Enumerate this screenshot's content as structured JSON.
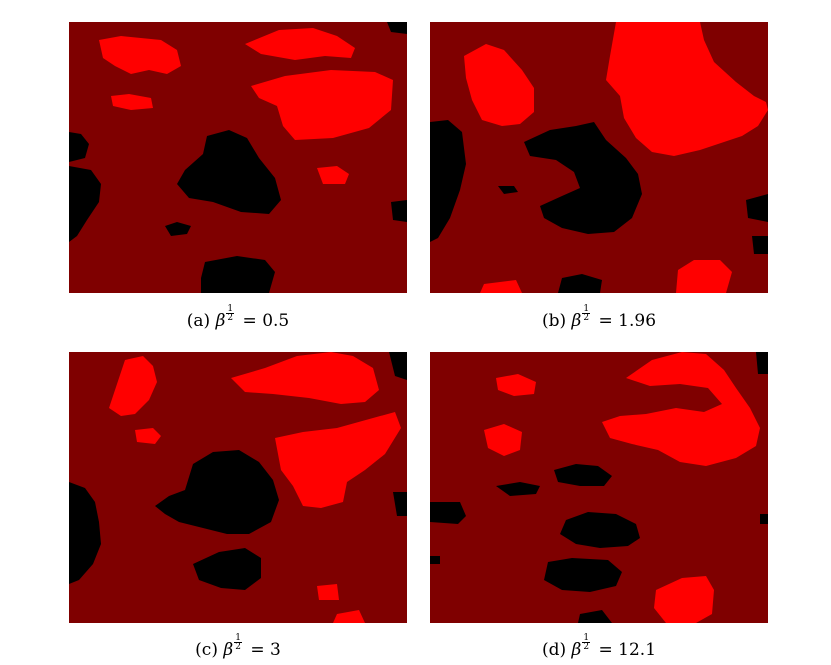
{
  "figure": {
    "colors": {
      "background": "#7f0000",
      "high": "#ff0000",
      "low": "#000000"
    },
    "panels": [
      {
        "label": "(a)",
        "symbol": "β",
        "exp_num": "1",
        "exp_den": "2",
        "relation": "=",
        "value": "0.5"
      },
      {
        "label": "(b)",
        "symbol": "β",
        "exp_num": "1",
        "exp_den": "2",
        "relation": "=",
        "value": "1.96"
      },
      {
        "label": "(c)",
        "symbol": "β",
        "exp_num": "1",
        "exp_den": "2",
        "relation": "=",
        "value": "3"
      },
      {
        "label": "(d)",
        "symbol": "β",
        "exp_num": "1",
        "exp_den": "2",
        "relation": "=",
        "value": "12.1"
      }
    ]
  }
}
